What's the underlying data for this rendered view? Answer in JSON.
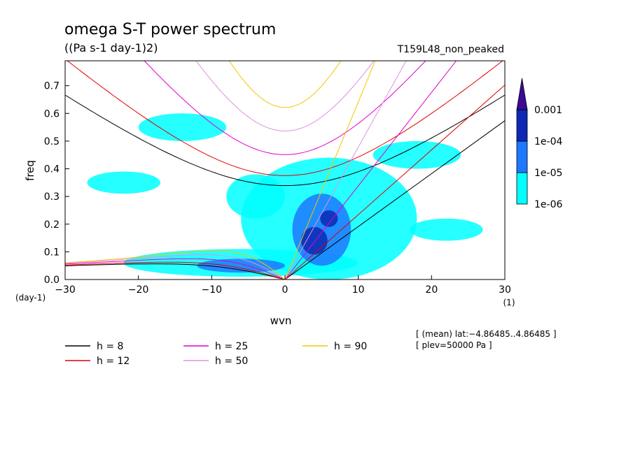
{
  "chart_data": {
    "type": "contour",
    "title": "omega S-T power spectrum",
    "subtitle": "((Pa s-1 day-1)2)",
    "run_label": "T159L48_non_peaked",
    "xlabel": "wvn",
    "ylabel": "freq",
    "x_unit": "(1)",
    "y_unit": "(day-1)",
    "xlim": [
      -30,
      30
    ],
    "ylim": [
      0,
      0.79
    ],
    "x_ticks": [
      -30,
      -20,
      -10,
      0,
      10,
      20,
      30
    ],
    "x_tick_labels": [
      "−30",
      "−20",
      "−10",
      "0",
      "10",
      "20",
      "30"
    ],
    "y_ticks": [
      0.0,
      0.1,
      0.2,
      0.3,
      0.4,
      0.5,
      0.6,
      0.7
    ],
    "y_tick_labels": [
      "0.0",
      "0.1",
      "0.2",
      "0.3",
      "0.4",
      "0.5",
      "0.6",
      "0.7"
    ],
    "colorbar": {
      "levels": [
        "1e-06",
        "1e-05",
        "1e-04",
        "0.001"
      ],
      "colors": [
        "#00ffff",
        "#1e78ff",
        "#0c28b4",
        "#3c0a96"
      ]
    },
    "contour_blobs": [
      {
        "level": 0,
        "x": 6,
        "y": 0.22,
        "rx": 12,
        "ry": 0.22
      },
      {
        "level": 0,
        "x": -6,
        "y": 0.06,
        "rx": 16,
        "ry": 0.05
      },
      {
        "level": 0,
        "x": -22,
        "y": 0.35,
        "rx": 5,
        "ry": 0.04
      },
      {
        "level": 0,
        "x": -14,
        "y": 0.55,
        "rx": 6,
        "ry": 0.05
      },
      {
        "level": 0,
        "x": 18,
        "y": 0.45,
        "rx": 6,
        "ry": 0.05
      },
      {
        "level": 0,
        "x": 22,
        "y": 0.18,
        "rx": 5,
        "ry": 0.04
      },
      {
        "level": 0,
        "x": -4,
        "y": 0.3,
        "rx": 4,
        "ry": 0.08
      },
      {
        "level": 1,
        "x": 5,
        "y": 0.18,
        "rx": 4,
        "ry": 0.13
      },
      {
        "level": 1,
        "x": -6,
        "y": 0.05,
        "rx": 6,
        "ry": 0.025
      },
      {
        "level": 2,
        "x": 4,
        "y": 0.14,
        "rx": 1.8,
        "ry": 0.05
      },
      {
        "level": 2,
        "x": 6,
        "y": 0.22,
        "rx": 1.2,
        "ry": 0.03
      }
    ],
    "series": [
      {
        "name": "h =  8",
        "h": 8,
        "color": "#000000"
      },
      {
        "name": "h = 12",
        "h": 12,
        "color": "#e00000"
      },
      {
        "name": "h = 25",
        "h": 25,
        "color": "#e000c8"
      },
      {
        "name": "h = 50",
        "h": 50,
        "color": "#e090e0"
      },
      {
        "name": "h = 90",
        "h": 90,
        "color": "#f0c800"
      }
    ],
    "annotation_lines": [
      "[ (mean) lat:−4.86485..4.86485 ]",
      "[ plev=50000 Pa ]"
    ]
  }
}
